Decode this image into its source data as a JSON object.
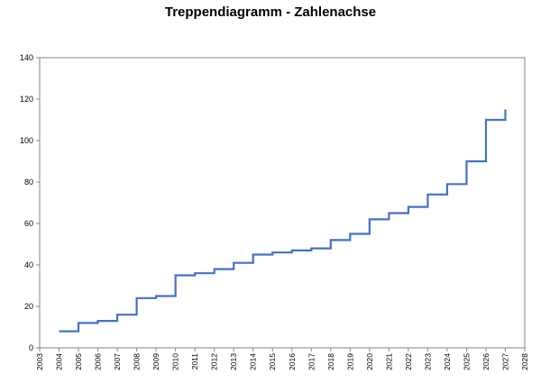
{
  "chart_data": {
    "type": "line",
    "title": "Treppendiagramm - Zahlenachse",
    "xlabel": "",
    "ylabel": "",
    "xlim": [
      2003,
      2028
    ],
    "ylim": [
      0,
      140
    ],
    "x_ticks": [
      "2003",
      "2004",
      "2005",
      "2006",
      "2007",
      "2008",
      "2009",
      "2010",
      "2011",
      "2012",
      "2013",
      "2014",
      "2015",
      "2016",
      "2017",
      "2018",
      "2019",
      "2020",
      "2021",
      "2022",
      "2023",
      "2024",
      "2025",
      "2026",
      "2027",
      "2028"
    ],
    "y_ticks": [
      "0",
      "20",
      "40",
      "60",
      "80",
      "100",
      "120",
      "140"
    ],
    "grid": false,
    "legend": "none",
    "series": [
      {
        "step": "post",
        "color": "#4472C4",
        "x": [
          2004,
          2005,
          2006,
          2007,
          2008,
          2009,
          2010,
          2011,
          2012,
          2013,
          2014,
          2015,
          2016,
          2017,
          2018,
          2019,
          2020,
          2021,
          2022,
          2023,
          2024,
          2025,
          2026,
          2027
        ],
        "values": [
          8,
          12,
          13,
          16,
          24,
          25,
          35,
          36,
          38,
          41,
          45,
          46,
          47,
          48,
          52,
          55,
          62,
          65,
          68,
          74,
          79,
          90,
          110,
          115
        ]
      }
    ]
  }
}
